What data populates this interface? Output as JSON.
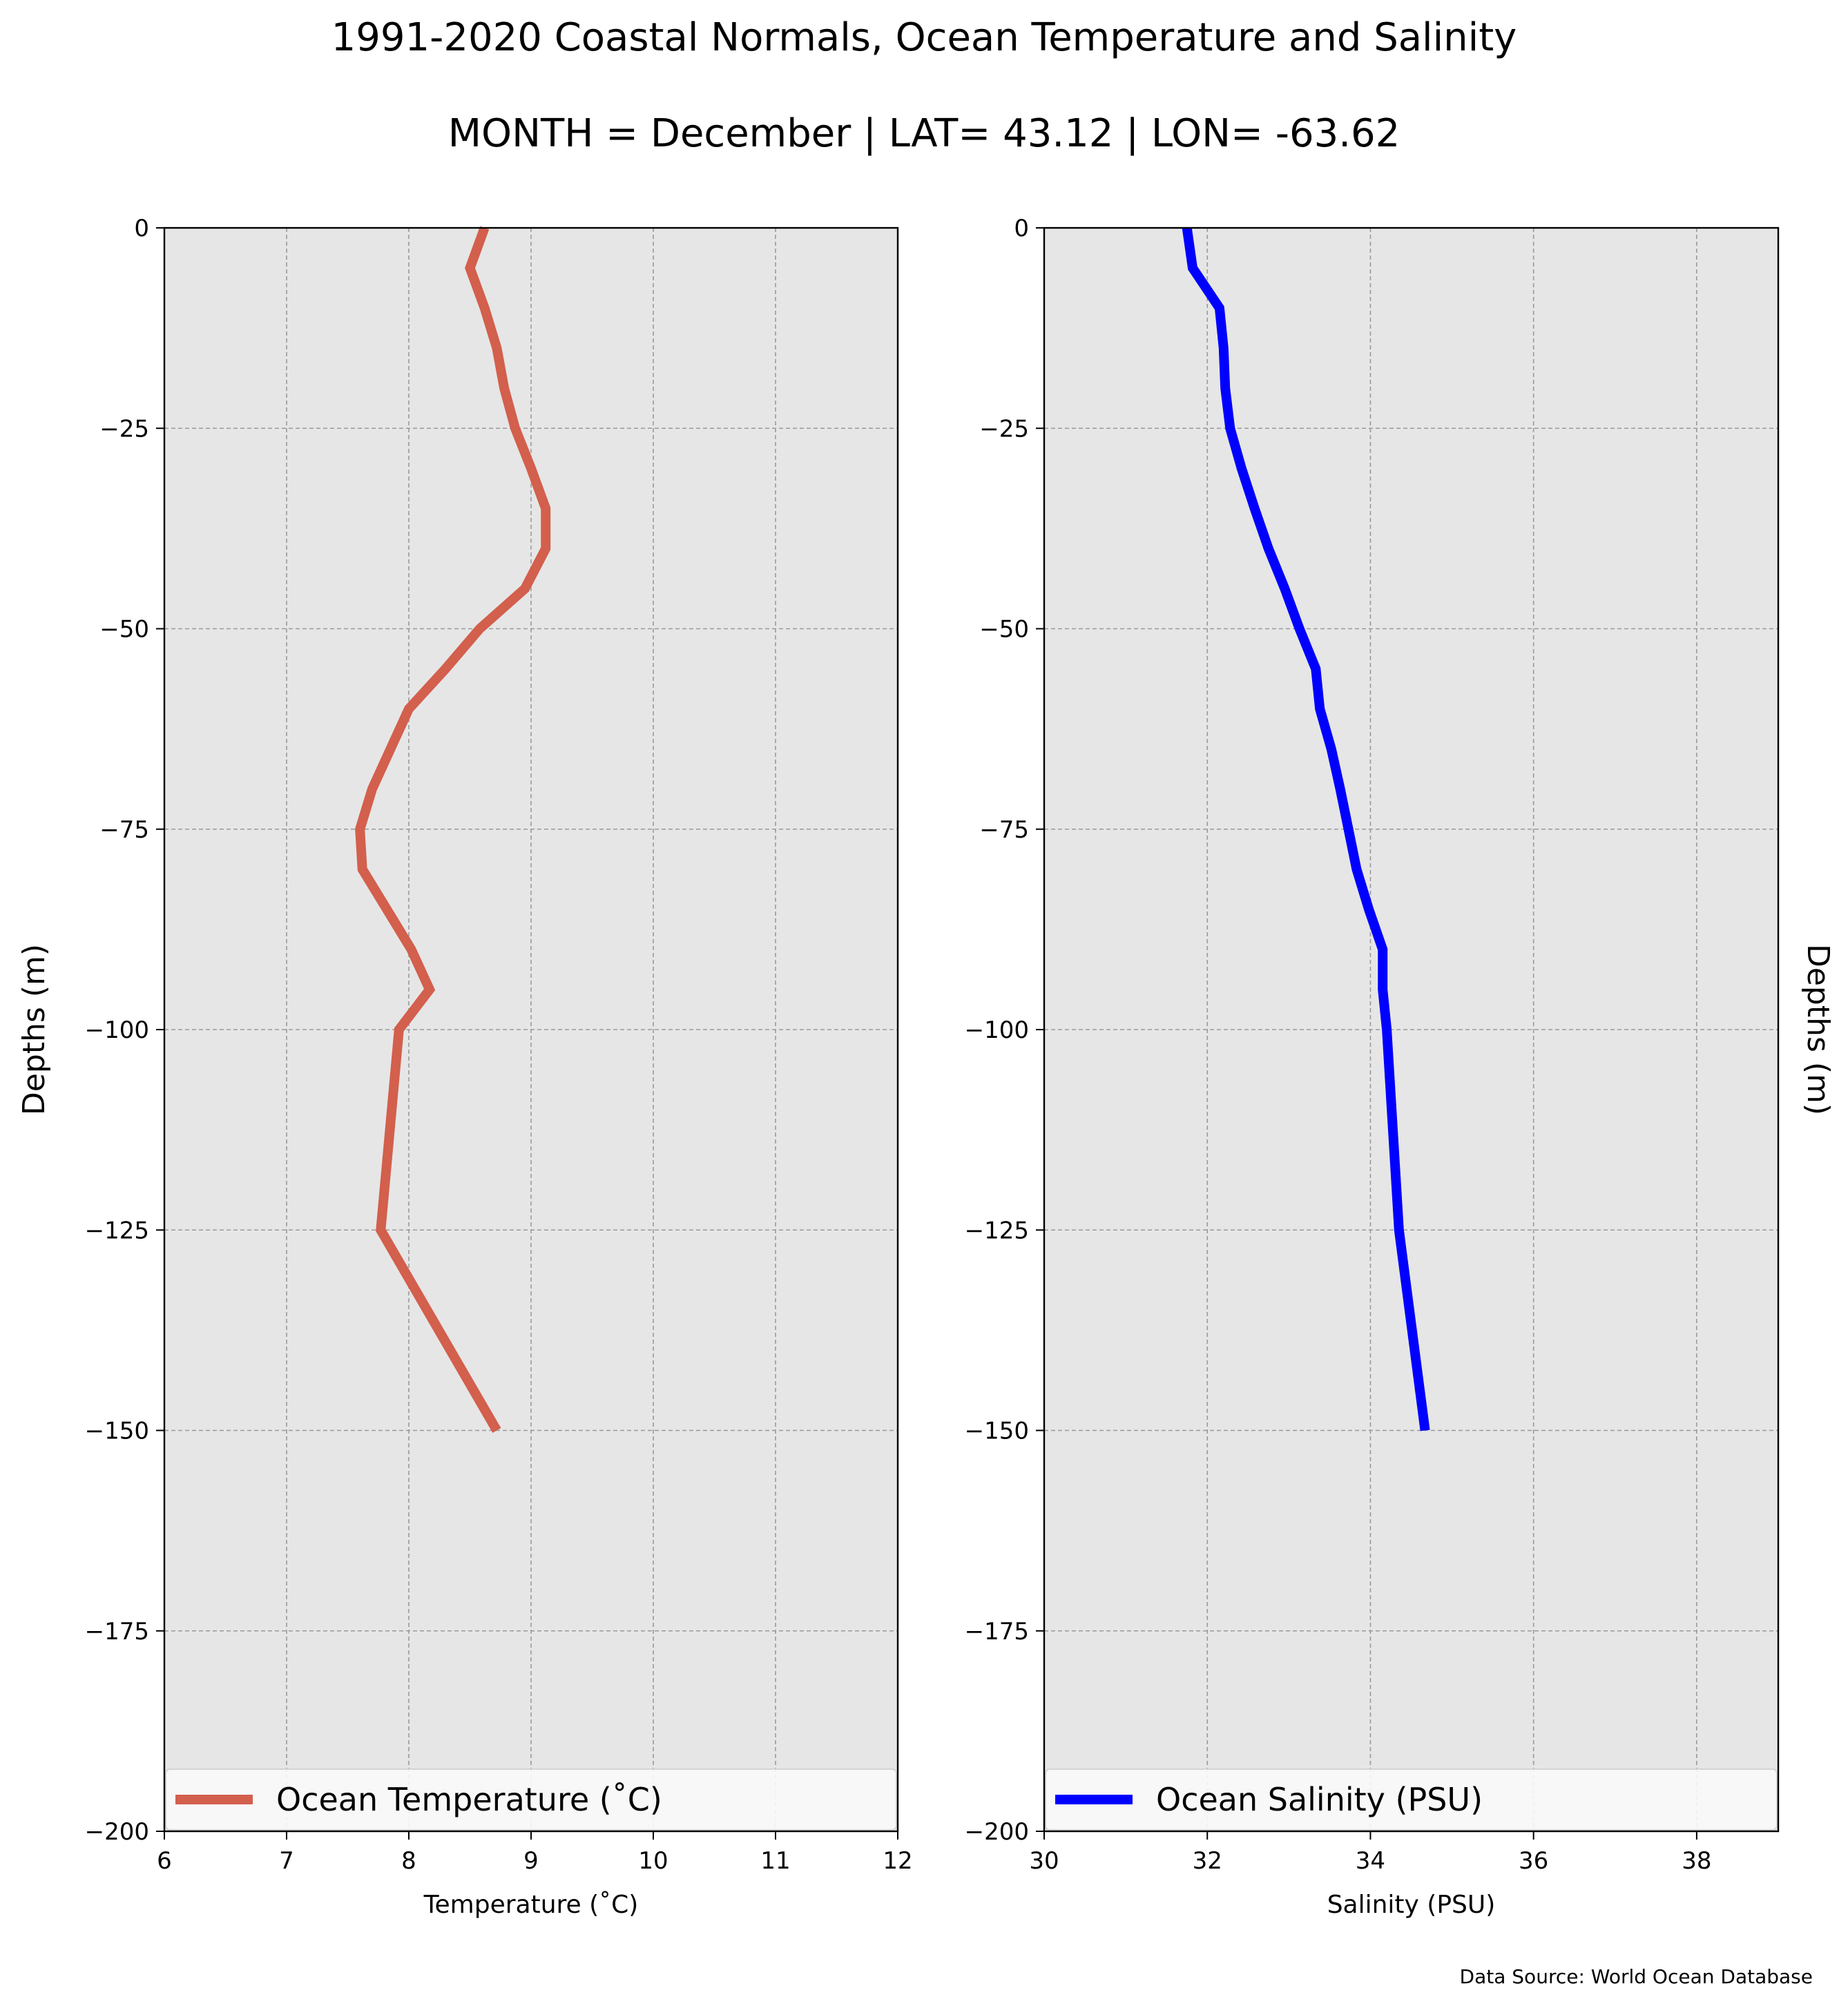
{
  "title": "1991-2020 Coastal Normals, Ocean Temperature and Salinity",
  "subtitle": "MONTH = December | LAT= 43.12 | LON= -63.62",
  "source": "Data Source: World Ocean Database",
  "chart_data": [
    {
      "type": "line",
      "xlabel": "Temperature ($^\\circ$C)",
      "xlabel_display": "Temperature (˚C)",
      "ylabel": "Depths (m)",
      "xlim": [
        6,
        12
      ],
      "ylim": [
        -200,
        0
      ],
      "x_ticks": [
        "6",
        "7",
        "8",
        "9",
        "10",
        "11",
        "12"
      ],
      "y_ticks": [
        "0",
        "−25",
        "−50",
        "−75",
        "−100",
        "−125",
        "−150",
        "−175",
        "−200"
      ],
      "grid": true,
      "legend_placement": "lower-center",
      "series": [
        {
          "name": "Ocean Temperature (˚C)",
          "color": "#d35f4d",
          "points": [
            {
              "x": 8.62,
              "y": 0
            },
            {
              "x": 8.5,
              "y": -5
            },
            {
              "x": 8.62,
              "y": -10
            },
            {
              "x": 8.72,
              "y": -15
            },
            {
              "x": 8.78,
              "y": -20
            },
            {
              "x": 8.87,
              "y": -25
            },
            {
              "x": 9.0,
              "y": -30
            },
            {
              "x": 9.12,
              "y": -35
            },
            {
              "x": 9.12,
              "y": -40
            },
            {
              "x": 8.95,
              "y": -45
            },
            {
              "x": 8.58,
              "y": -50
            },
            {
              "x": 8.3,
              "y": -55
            },
            {
              "x": 8.0,
              "y": -60
            },
            {
              "x": 7.85,
              "y": -65
            },
            {
              "x": 7.7,
              "y": -70
            },
            {
              "x": 7.6,
              "y": -75
            },
            {
              "x": 7.62,
              "y": -80
            },
            {
              "x": 7.82,
              "y": -85
            },
            {
              "x": 8.02,
              "y": -90
            },
            {
              "x": 8.17,
              "y": -95
            },
            {
              "x": 7.92,
              "y": -100
            },
            {
              "x": 7.77,
              "y": -125
            },
            {
              "x": 8.72,
              "y": -150
            }
          ]
        }
      ]
    },
    {
      "type": "line",
      "xlabel": "Salinity (PSU)",
      "ylabel": "Depths (m)",
      "xlim": [
        30,
        39
      ],
      "ylim": [
        -200,
        0
      ],
      "x_ticks": [
        "30",
        "32",
        "34",
        "36",
        "38"
      ],
      "y_ticks": [
        "0",
        "−25",
        "−50",
        "−75",
        "−100",
        "−125",
        "−150",
        "−175",
        "−200"
      ],
      "grid": true,
      "legend_placement": "lower-center",
      "series": [
        {
          "name": "Ocean Salinity (PSU)",
          "color": "#0000ff",
          "points": [
            {
              "x": 31.75,
              "y": 0
            },
            {
              "x": 31.82,
              "y": -5
            },
            {
              "x": 32.15,
              "y": -10
            },
            {
              "x": 32.2,
              "y": -15
            },
            {
              "x": 32.22,
              "y": -20
            },
            {
              "x": 32.28,
              "y": -25
            },
            {
              "x": 32.42,
              "y": -30
            },
            {
              "x": 32.58,
              "y": -35
            },
            {
              "x": 32.75,
              "y": -40
            },
            {
              "x": 32.95,
              "y": -45
            },
            {
              "x": 33.13,
              "y": -50
            },
            {
              "x": 33.33,
              "y": -55
            },
            {
              "x": 33.38,
              "y": -60
            },
            {
              "x": 33.52,
              "y": -65
            },
            {
              "x": 33.63,
              "y": -70
            },
            {
              "x": 33.73,
              "y": -75
            },
            {
              "x": 33.83,
              "y": -80
            },
            {
              "x": 33.98,
              "y": -85
            },
            {
              "x": 34.15,
              "y": -90
            },
            {
              "x": 34.15,
              "y": -95
            },
            {
              "x": 34.2,
              "y": -100
            },
            {
              "x": 34.35,
              "y": -125
            },
            {
              "x": 34.67,
              "y": -150
            }
          ]
        }
      ]
    }
  ]
}
